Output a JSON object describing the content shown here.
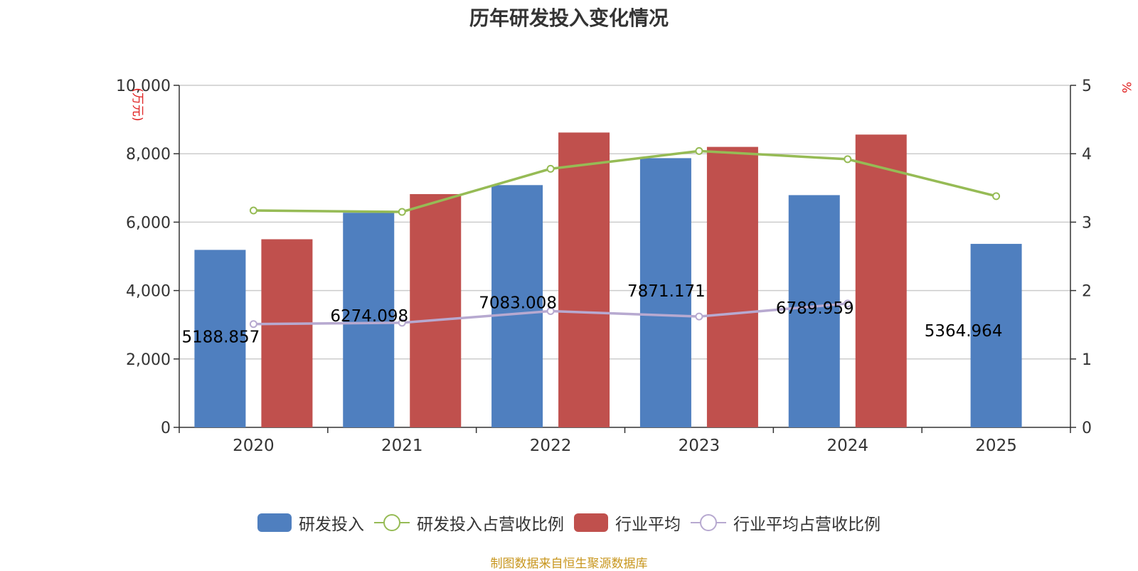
{
  "title": "历年研发投入变化情况",
  "source": "制图数据来自恒生聚源数据库",
  "colors": {
    "rd": "#4f7fbf",
    "rd_ratio": "#96bb55",
    "industry": "#c0504d",
    "industry_ratio": "#b7a9d0",
    "axis_unit": "#e02020",
    "grid": "#cccccc",
    "axis": "#333333"
  },
  "legend": [
    {
      "label": "研发投入",
      "kind": "bar",
      "color_key": "rd"
    },
    {
      "label": "研发投入占营收比例",
      "kind": "line",
      "color_key": "rd_ratio"
    },
    {
      "label": "行业平均",
      "kind": "bar",
      "color_key": "industry"
    },
    {
      "label": "行业平均占营收比例",
      "kind": "line",
      "color_key": "industry_ratio"
    }
  ],
  "chart_data": {
    "type": "bar",
    "title": "历年研发投入变化情况",
    "categories": [
      "2020",
      "2021",
      "2022",
      "2023",
      "2024",
      "2025"
    ],
    "y_left": {
      "unit": "(万元)",
      "ylim": [
        0,
        10000
      ],
      "ticks": [
        0,
        2000,
        4000,
        6000,
        8000,
        10000
      ],
      "tick_labels": [
        "0",
        "2,000",
        "4,000",
        "6,000",
        "8,000",
        "10,000"
      ]
    },
    "y_right": {
      "unit": "%",
      "ylim": [
        0,
        5
      ],
      "ticks": [
        0,
        1,
        2,
        3,
        4,
        5
      ],
      "tick_labels": [
        "0",
        "1",
        "2",
        "3",
        "4",
        "5"
      ]
    },
    "series": [
      {
        "name": "研发投入",
        "type": "bar",
        "axis": "left",
        "color_key": "rd",
        "values": [
          5188.857,
          6274.098,
          7083.008,
          7871.171,
          6789.959,
          5364.964
        ],
        "labels": [
          "5188.857",
          "6274.098",
          "7083.008",
          "7871.171",
          "6789.959",
          "5364.964"
        ]
      },
      {
        "name": "行业平均",
        "type": "bar",
        "axis": "left",
        "color_key": "industry",
        "values": [
          5500,
          6820,
          8620,
          8200,
          8560,
          null
        ]
      },
      {
        "name": "研发投入占营收比例",
        "type": "line",
        "axis": "right",
        "color_key": "rd_ratio",
        "values": [
          3.17,
          3.15,
          3.78,
          4.04,
          3.92,
          3.38
        ]
      },
      {
        "name": "行业平均占营收比例",
        "type": "line",
        "axis": "right",
        "color_key": "industry_ratio",
        "values": [
          1.51,
          1.53,
          1.7,
          1.62,
          1.81,
          null
        ]
      }
    ],
    "grid": true
  }
}
